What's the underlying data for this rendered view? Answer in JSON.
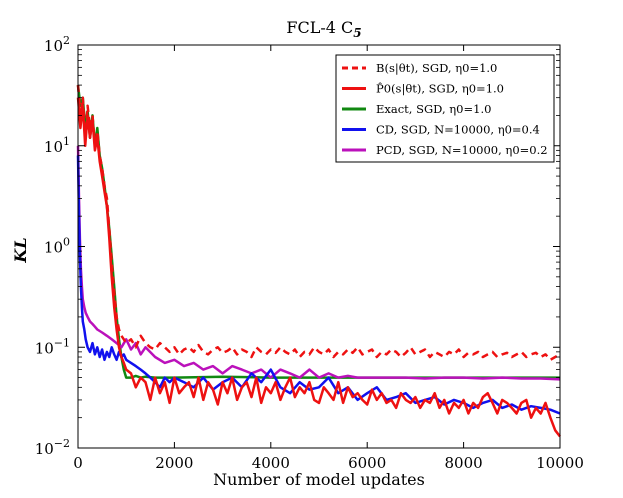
{
  "chart_data": {
    "type": "line",
    "title": "FCL-4 C",
    "title_sub": "5",
    "xlabel": "Number of model updates",
    "ylabel": "KL",
    "xlim": [
      0,
      10000
    ],
    "ylim_log10": [
      -2,
      2
    ],
    "yscale": "log",
    "x_ticks": [
      0,
      2000,
      4000,
      6000,
      8000,
      10000
    ],
    "x_tick_labels": [
      "0",
      "2000",
      "4000",
      "6000",
      "8000",
      "10000"
    ],
    "y_ticks": [
      {
        "base": "10",
        "exp": "2",
        "value": 100
      },
      {
        "base": "10",
        "exp": "1",
        "value": 10
      },
      {
        "base": "10",
        "exp": "0",
        "value": 1
      },
      {
        "base": "10",
        "exp": "−1",
        "value": 0.1
      },
      {
        "base": "10",
        "exp": "−2",
        "value": 0.01
      }
    ],
    "legend_position": "top-right",
    "series": [
      {
        "name": "B(s|θt), SGD, η0=1.0",
        "color": "#ee1111",
        "dash": "dashed",
        "x": [
          0,
          50,
          100,
          150,
          200,
          250,
          300,
          350,
          400,
          450,
          500,
          550,
          600,
          650,
          700,
          750,
          800,
          850,
          900,
          950,
          1000,
          1100,
          1200,
          1300,
          1400,
          1500,
          1600,
          1700,
          1800,
          1900,
          2000,
          2100,
          2200,
          2300,
          2400,
          2500,
          2600,
          2700,
          2800,
          2900,
          3000,
          3100,
          3200,
          3300,
          3400,
          3500,
          3600,
          3700,
          3800,
          3900,
          4000,
          4100,
          4200,
          4300,
          4400,
          4500,
          4600,
          4700,
          4800,
          4900,
          5000,
          5100,
          5200,
          5300,
          5400,
          5500,
          5600,
          5700,
          5800,
          5900,
          6000,
          6100,
          6200,
          6300,
          6400,
          6500,
          6600,
          6700,
          6800,
          6900,
          7000,
          7100,
          7200,
          7300,
          7400,
          7500,
          7600,
          7700,
          7800,
          7900,
          8000,
          8100,
          8200,
          8300,
          8400,
          8500,
          8600,
          8700,
          8800,
          8900,
          9000,
          9100,
          9200,
          9300,
          9400,
          9500,
          9600,
          9700,
          9800,
          9900,
          10000
        ],
        "y": [
          40,
          20,
          30,
          12,
          25,
          15,
          20,
          10,
          14,
          8,
          6,
          4,
          3,
          1.5,
          0.7,
          0.35,
          0.2,
          0.15,
          0.13,
          0.12,
          0.11,
          0.12,
          0.1,
          0.13,
          0.11,
          0.1,
          0.095,
          0.11,
          0.1,
          0.09,
          0.1,
          0.085,
          0.095,
          0.1,
          0.09,
          0.105,
          0.09,
          0.085,
          0.095,
          0.1,
          0.088,
          0.092,
          0.1,
          0.085,
          0.095,
          0.09,
          0.08,
          0.1,
          0.09,
          0.085,
          0.095,
          0.088,
          0.1,
          0.09,
          0.085,
          0.095,
          0.08,
          0.09,
          0.085,
          0.1,
          0.09,
          0.085,
          0.095,
          0.08,
          0.09,
          0.085,
          0.095,
          0.088,
          0.1,
          0.085,
          0.09,
          0.095,
          0.08,
          0.09,
          0.085,
          0.095,
          0.09,
          0.08,
          0.088,
          0.1,
          0.085,
          0.09,
          0.095,
          0.08,
          0.09,
          0.085,
          0.08,
          0.09,
          0.085,
          0.095,
          0.08,
          0.088,
          0.085,
          0.09,
          0.08,
          0.085,
          0.09,
          0.08,
          0.085,
          0.088,
          0.08,
          0.085,
          0.09,
          0.08,
          0.085,
          0.088,
          0.08,
          0.085,
          0.075,
          0.08,
          0.085
        ]
      },
      {
        "name": "P̂0(s|θt), SGD, η0=1.0",
        "color": "#ee1111",
        "dash": "solid",
        "x": [
          0,
          50,
          100,
          150,
          200,
          250,
          300,
          350,
          400,
          450,
          500,
          550,
          600,
          650,
          700,
          750,
          800,
          850,
          900,
          950,
          1000,
          1100,
          1200,
          1300,
          1400,
          1500,
          1600,
          1700,
          1800,
          1900,
          2000,
          2100,
          2200,
          2300,
          2400,
          2500,
          2600,
          2700,
          2800,
          2900,
          3000,
          3100,
          3200,
          3300,
          3400,
          3500,
          3600,
          3700,
          3800,
          3900,
          4000,
          4100,
          4200,
          4300,
          4400,
          4500,
          4600,
          4700,
          4800,
          4900,
          5000,
          5100,
          5200,
          5300,
          5400,
          5500,
          5600,
          5700,
          5800,
          5900,
          6000,
          6100,
          6200,
          6300,
          6400,
          6500,
          6600,
          6700,
          6800,
          6900,
          7000,
          7100,
          7200,
          7300,
          7400,
          7500,
          7600,
          7700,
          7800,
          7900,
          8000,
          8100,
          8200,
          8300,
          8400,
          8500,
          8600,
          8700,
          8800,
          8900,
          9000,
          9100,
          9200,
          9300,
          9400,
          9500,
          9600,
          9700,
          9800,
          9900,
          10000
        ],
        "y": [
          30,
          15,
          25,
          10,
          20,
          12,
          18,
          9,
          12,
          7,
          5,
          3.5,
          2.5,
          1.2,
          0.5,
          0.25,
          0.15,
          0.1,
          0.08,
          0.07,
          0.06,
          0.055,
          0.04,
          0.05,
          0.045,
          0.03,
          0.05,
          0.035,
          0.045,
          0.028,
          0.05,
          0.035,
          0.04,
          0.045,
          0.032,
          0.05,
          0.03,
          0.045,
          0.038,
          0.027,
          0.045,
          0.035,
          0.05,
          0.03,
          0.04,
          0.045,
          0.032,
          0.05,
          0.028,
          0.04,
          0.035,
          0.045,
          0.03,
          0.04,
          0.05,
          0.032,
          0.04,
          0.035,
          0.045,
          0.03,
          0.028,
          0.04,
          0.035,
          0.03,
          0.045,
          0.028,
          0.04,
          0.032,
          0.035,
          0.03,
          0.027,
          0.038,
          0.03,
          0.035,
          0.028,
          0.03,
          0.025,
          0.035,
          0.03,
          0.028,
          0.032,
          0.025,
          0.03,
          0.028,
          0.035,
          0.025,
          0.03,
          0.022,
          0.028,
          0.025,
          0.03,
          0.022,
          0.028,
          0.025,
          0.032,
          0.035,
          0.028,
          0.022,
          0.03,
          0.028,
          0.025,
          0.022,
          0.028,
          0.03,
          0.02,
          0.025,
          0.022,
          0.028,
          0.02,
          0.015,
          0.013
        ]
      },
      {
        "name": "Exact, SGD, η0=1.0",
        "color": "#118811",
        "dash": "solid",
        "x": [
          0,
          50,
          100,
          150,
          200,
          250,
          300,
          350,
          400,
          450,
          500,
          550,
          600,
          650,
          700,
          750,
          800,
          850,
          900,
          950,
          1000,
          1100,
          1200,
          1300,
          1400,
          1600,
          2000,
          3000,
          4000,
          5000,
          6000,
          7000,
          8000,
          9000,
          10000
        ],
        "y": [
          40,
          25,
          30,
          15,
          22,
          12,
          20,
          10,
          15,
          8,
          6,
          4,
          2.5,
          1.5,
          0.8,
          0.4,
          0.2,
          0.12,
          0.08,
          0.06,
          0.05,
          0.05,
          0.052,
          0.05,
          0.051,
          0.05,
          0.05,
          0.051,
          0.05,
          0.05,
          0.05,
          0.05,
          0.05,
          0.05,
          0.05
        ]
      },
      {
        "name": "CD, SGD, N=10000, η0=0.4",
        "color": "#1111ee",
        "dash": "solid",
        "x": [
          0,
          20,
          40,
          60,
          80,
          100,
          130,
          160,
          200,
          250,
          300,
          350,
          400,
          450,
          500,
          550,
          600,
          650,
          700,
          750,
          800,
          850,
          900,
          950,
          1000,
          1100,
          1200,
          1300,
          1400,
          1500,
          1600,
          1700,
          1800,
          1900,
          2000,
          2200,
          2400,
          2600,
          2800,
          3000,
          3200,
          3400,
          3600,
          3800,
          4000,
          4200,
          4400,
          4600,
          4800,
          5000,
          5200,
          5400,
          5600,
          5800,
          6000,
          6200,
          6400,
          6600,
          6800,
          7000,
          7200,
          7400,
          7600,
          7800,
          8000,
          8200,
          8400,
          8600,
          8800,
          9000,
          9200,
          9400,
          9600,
          9800,
          10000
        ],
        "y": [
          8,
          2,
          0.8,
          0.4,
          0.25,
          0.18,
          0.15,
          0.12,
          0.1,
          0.09,
          0.11,
          0.085,
          0.1,
          0.08,
          0.095,
          0.075,
          0.09,
          0.08,
          0.1,
          0.085,
          0.075,
          0.09,
          0.08,
          0.085,
          0.075,
          0.07,
          0.065,
          0.06,
          0.055,
          0.05,
          0.045,
          0.04,
          0.05,
          0.045,
          0.05,
          0.045,
          0.04,
          0.05,
          0.038,
          0.045,
          0.05,
          0.04,
          0.055,
          0.045,
          0.06,
          0.04,
          0.035,
          0.045,
          0.038,
          0.04,
          0.05,
          0.035,
          0.04,
          0.03,
          0.035,
          0.04,
          0.03,
          0.032,
          0.035,
          0.028,
          0.03,
          0.032,
          0.027,
          0.03,
          0.028,
          0.025,
          0.028,
          0.03,
          0.025,
          0.027,
          0.024,
          0.026,
          0.025,
          0.024,
          0.022
        ]
      },
      {
        "name": "PCD, SGD, N=10000, η0=0.2",
        "color": "#bb11bb",
        "dash": "solid",
        "x": [
          0,
          20,
          40,
          60,
          80,
          100,
          130,
          160,
          200,
          250,
          300,
          350,
          400,
          500,
          600,
          700,
          800,
          900,
          1000,
          1100,
          1200,
          1300,
          1400,
          1600,
          1800,
          2000,
          2200,
          2400,
          2600,
          2800,
          3000,
          3200,
          3400,
          3600,
          3800,
          4000,
          4200,
          4400,
          4600,
          4800,
          5000,
          5200,
          5400,
          5600,
          5800,
          6000,
          6400,
          6800,
          7200,
          7600,
          8000,
          8400,
          8800,
          9200,
          9600,
          10000
        ],
        "y": [
          10,
          3,
          1.2,
          0.6,
          0.4,
          0.3,
          0.25,
          0.22,
          0.2,
          0.18,
          0.17,
          0.16,
          0.15,
          0.14,
          0.13,
          0.12,
          0.11,
          0.1,
          0.12,
          0.095,
          0.11,
          0.085,
          0.1,
          0.08,
          0.07,
          0.075,
          0.065,
          0.07,
          0.06,
          0.065,
          0.055,
          0.065,
          0.06,
          0.055,
          0.06,
          0.05,
          0.06,
          0.055,
          0.05,
          0.06,
          0.05,
          0.055,
          0.05,
          0.052,
          0.05,
          0.05,
          0.05,
          0.05,
          0.049,
          0.05,
          0.05,
          0.049,
          0.05,
          0.049,
          0.049,
          0.048
        ]
      }
    ]
  }
}
